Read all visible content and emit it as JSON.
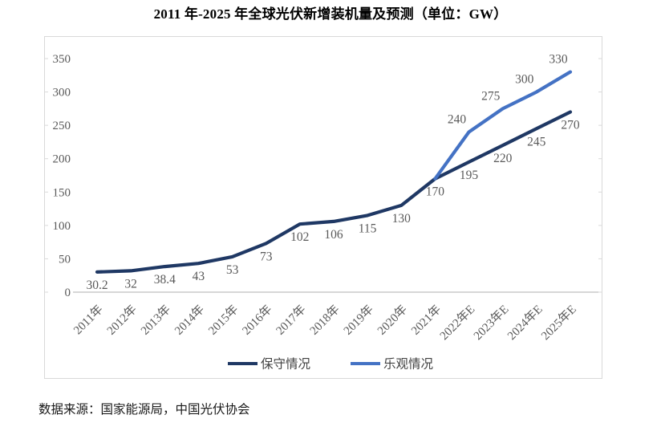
{
  "title": "2011 年-2025 年全球光伏新增装机量及预测（单位：GW）",
  "source": "数据来源：国家能源局，中国光伏协会",
  "colors": {
    "conservative": "#1F3864",
    "optimistic": "#4472C4",
    "axis_line": "#BFBFBF",
    "frame_border": "#D9D9D9",
    "tick_label": "#595959",
    "data_label": "#595959",
    "legend_text": "#404040"
  },
  "chart_data": {
    "type": "line",
    "title": "2011 年-2025 年全球光伏新增装机量及预测（单位：GW）",
    "categories": [
      "2011年",
      "2012年",
      "2013年",
      "2014年",
      "2015年",
      "2016年",
      "2017年",
      "2018年",
      "2019年",
      "2020年",
      "2021年",
      "2022年E",
      "2023年E",
      "2024年E",
      "2025年E"
    ],
    "series": [
      {
        "name": "保守情况",
        "color_key": "conservative",
        "values": [
          30.2,
          32,
          38.4,
          43,
          53,
          73,
          102,
          106,
          115,
          130,
          170,
          195,
          220,
          245,
          270
        ]
      },
      {
        "name": "乐观情况",
        "color_key": "optimistic",
        "values": [
          null,
          null,
          null,
          null,
          null,
          null,
          null,
          null,
          null,
          null,
          170,
          240,
          275,
          300,
          330
        ]
      }
    ],
    "ylabel": "",
    "xlabel": "",
    "ylim": [
      0,
      350
    ],
    "ytick_step": 50,
    "grid": false,
    "legend_position": "bottom"
  }
}
